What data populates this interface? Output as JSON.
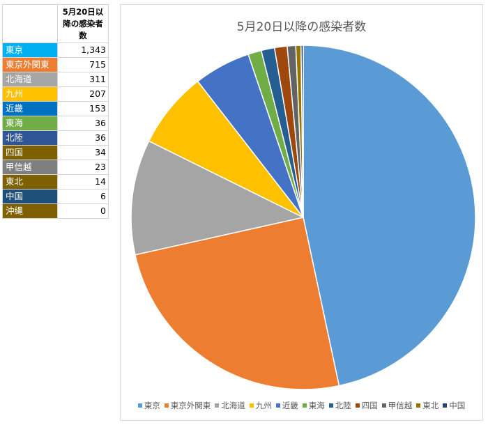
{
  "table": {
    "header": "5月20日以降の感染者数"
  },
  "chart_data": {
    "type": "pie",
    "title": "5月20日以降の感染者数",
    "legend_position": "bottom",
    "slices": [
      {
        "name": "東京",
        "display_value": "1,343",
        "value": 1343,
        "color": "#5b9bd5",
        "table_color": "#00b0f0",
        "in_legend": true
      },
      {
        "name": "東京外関東",
        "display_value": "715",
        "value": 715,
        "color": "#ed7d31",
        "table_color": "#ed7d31",
        "in_legend": true
      },
      {
        "name": "北海道",
        "display_value": "311",
        "value": 311,
        "color": "#a5a5a5",
        "table_color": "#a5a5a5",
        "in_legend": true
      },
      {
        "name": "九州",
        "display_value": "207",
        "value": 207,
        "color": "#ffc000",
        "table_color": "#ffc000",
        "in_legend": true
      },
      {
        "name": "近畿",
        "display_value": "153",
        "value": 153,
        "color": "#4472c4",
        "table_color": "#0070c0",
        "in_legend": true
      },
      {
        "name": "東海",
        "display_value": "36",
        "value": 36,
        "color": "#70ad47",
        "table_color": "#70ad47",
        "in_legend": true
      },
      {
        "name": "北陸",
        "display_value": "36",
        "value": 36,
        "color": "#255e91",
        "table_color": "#2f5597",
        "in_legend": true
      },
      {
        "name": "四国",
        "display_value": "34",
        "value": 34,
        "color": "#9e480e",
        "table_color": "#7f6000",
        "in_legend": true
      },
      {
        "name": "甲信越",
        "display_value": "23",
        "value": 23,
        "color": "#636363",
        "table_color": "#7f7f7f",
        "in_legend": true
      },
      {
        "name": "東北",
        "display_value": "14",
        "value": 14,
        "color": "#997300",
        "table_color": "#7f6000",
        "in_legend": true
      },
      {
        "name": "中国",
        "display_value": "6",
        "value": 6,
        "color": "#264478",
        "table_color": "#1f4e79",
        "in_legend": true
      },
      {
        "name": "沖縄",
        "display_value": "0",
        "value": 0,
        "color": "#7f6000",
        "table_color": "#7f6000",
        "in_legend": false
      }
    ]
  }
}
